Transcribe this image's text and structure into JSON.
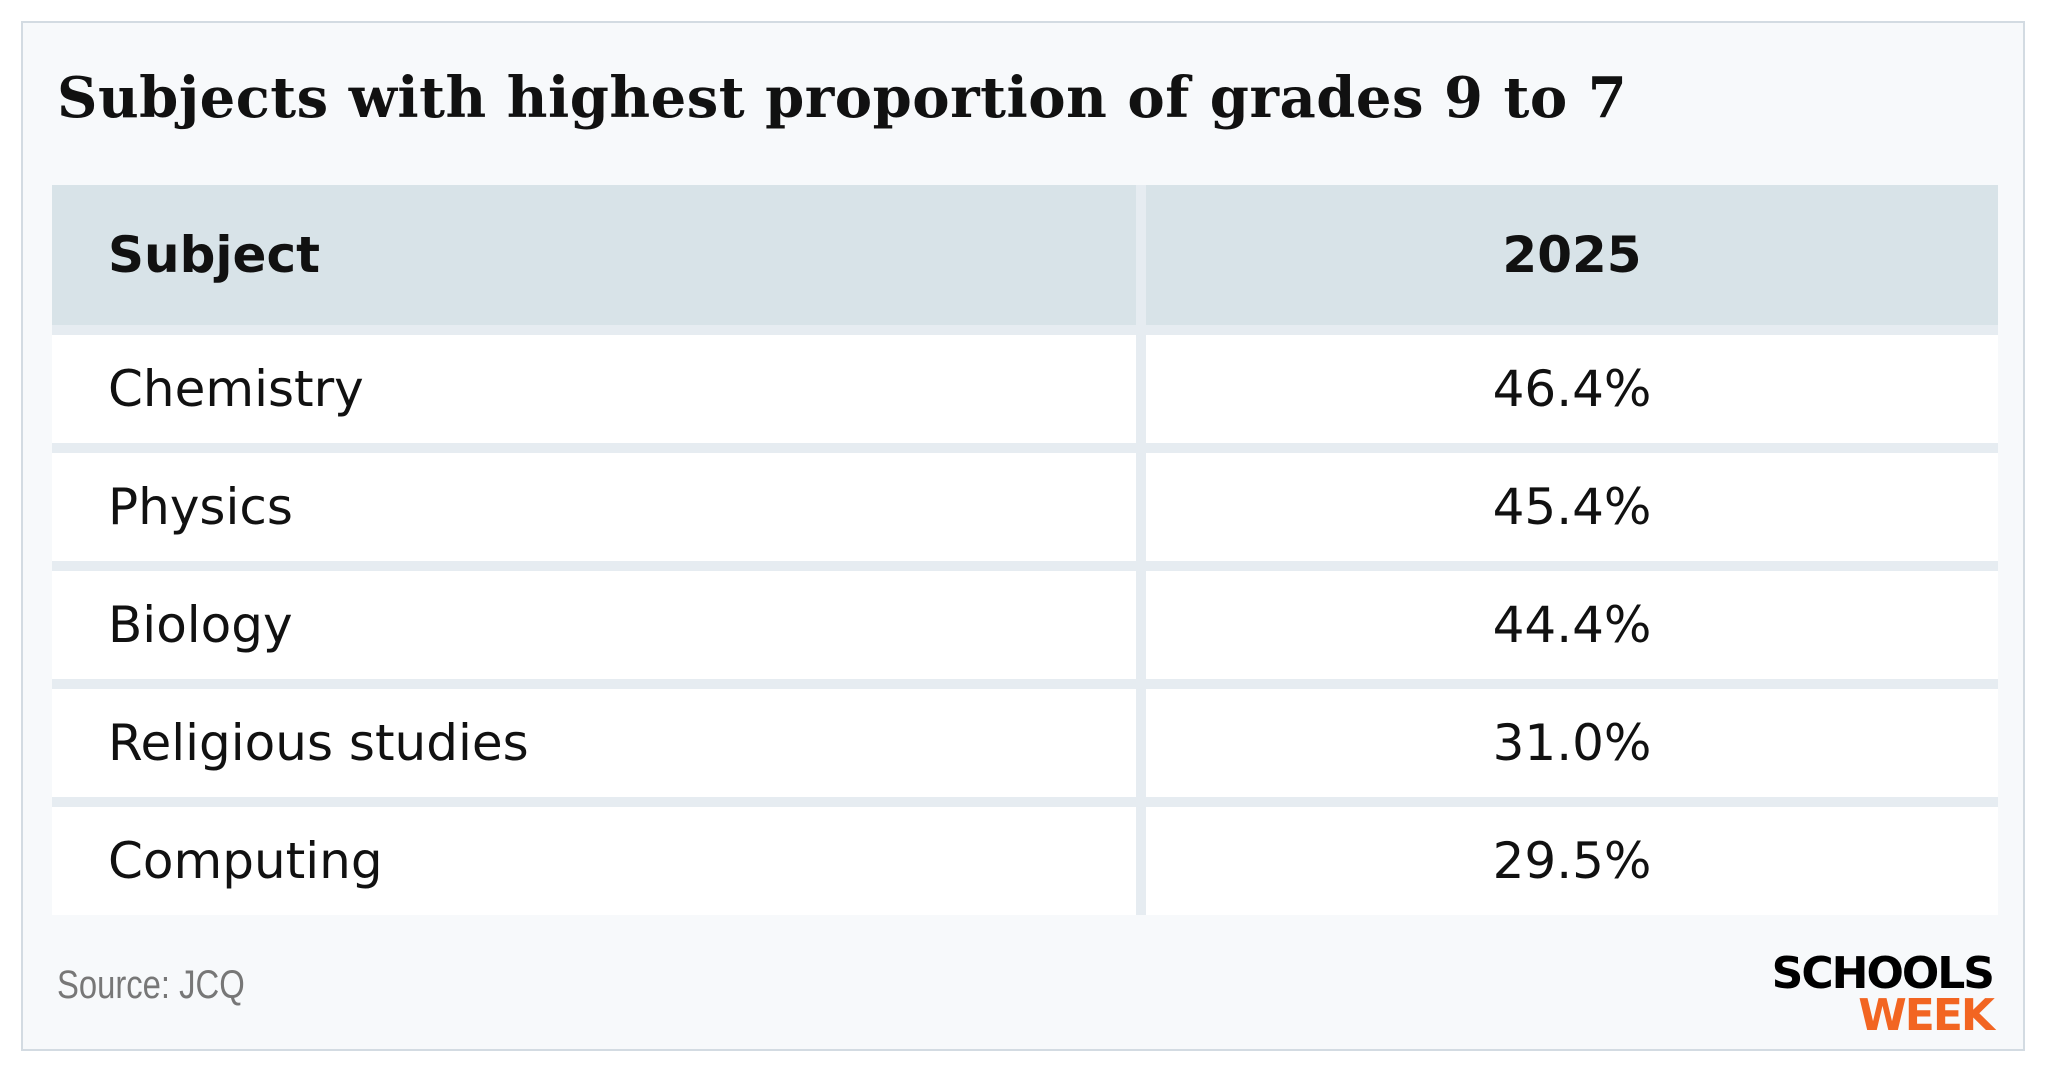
{
  "title": "Subjects with highest proportion of grades 9 to 7",
  "table": {
    "header": [
      "Subject",
      "2025"
    ],
    "rows": [
      [
        "Chemistry",
        "46.4%"
      ],
      [
        "Physics",
        "45.4%"
      ],
      [
        "Biology",
        "44.4%"
      ],
      [
        "Religious studies",
        "31.0%"
      ],
      [
        "Computing",
        "29.5%"
      ]
    ]
  },
  "source": "Source: JCQ",
  "logo": [
    "SCHOOLS",
    "WEEK"
  ]
}
